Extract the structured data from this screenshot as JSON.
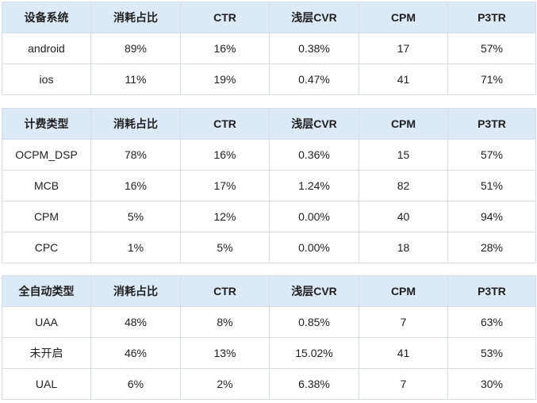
{
  "tables": [
    {
      "headers": [
        "设备系统",
        "消耗占比",
        "CTR",
        "浅层CVR",
        "CPM",
        "P3TR"
      ],
      "rows": [
        [
          "android",
          "89%",
          "16%",
          "0.38%",
          "17",
          "57%"
        ],
        [
          "ios",
          "11%",
          "19%",
          "0.47%",
          "41",
          "71%"
        ]
      ]
    },
    {
      "headers": [
        "计费类型",
        "消耗占比",
        "CTR",
        "浅层CVR",
        "CPM",
        "P3TR"
      ],
      "rows": [
        [
          "OCPM_DSP",
          "78%",
          "16%",
          "0.36%",
          "15",
          "57%"
        ],
        [
          "MCB",
          "16%",
          "17%",
          "1.24%",
          "82",
          "51%"
        ],
        [
          "CPM",
          "5%",
          "12%",
          "0.00%",
          "40",
          "94%"
        ],
        [
          "CPC",
          "1%",
          "5%",
          "0.00%",
          "18",
          "28%"
        ]
      ]
    },
    {
      "headers": [
        "全自动类型",
        "消耗占比",
        "CTR",
        "浅层CVR",
        "CPM",
        "P3TR"
      ],
      "rows": [
        [
          "UAA",
          "48%",
          "8%",
          "0.85%",
          "7",
          "63%"
        ],
        [
          "未开启",
          "46%",
          "13%",
          "15.02%",
          "41",
          "53%"
        ],
        [
          "UAL",
          "6%",
          "2%",
          "6.38%",
          "7",
          "30%"
        ]
      ]
    }
  ],
  "colors": {
    "header_bg": "#dce9f7",
    "border": "#d7dde5",
    "text": "#222222"
  }
}
